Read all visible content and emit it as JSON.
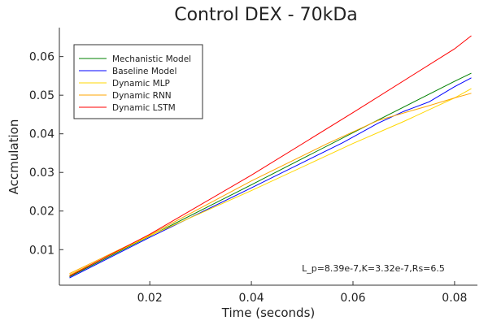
{
  "chart_data": {
    "type": "line",
    "title": "Control DEX - 70kDa",
    "xlabel": "Time (seconds)",
    "ylabel": "Accmulation",
    "xlim": [
      0.0022,
      0.0845
    ],
    "ylim": [
      0.0008,
      0.0675
    ],
    "xticks": [
      0.02,
      0.04,
      0.06,
      0.08
    ],
    "xtick_labels": [
      "0.02",
      "0.04",
      "0.06",
      "0.08"
    ],
    "yticks": [
      0.01,
      0.02,
      0.03,
      0.04,
      0.05,
      0.06
    ],
    "ytick_labels": [
      "0.01",
      "0.02",
      "0.03",
      "0.04",
      "0.05",
      "0.06"
    ],
    "grid": false,
    "legend_position": "top-left",
    "annotation": "L_p=8.39e-7,K=3.32e-7,Rs=6.5",
    "series": [
      {
        "name": "Mechanistic Model",
        "color": "#008000",
        "x": [
          0.0042,
          0.02,
          0.04,
          0.06,
          0.08,
          0.0833
        ],
        "y": [
          0.003,
          0.0135,
          0.0268,
          0.0403,
          0.0536,
          0.0557
        ]
      },
      {
        "name": "Baseline Model",
        "color": "#0000ff",
        "x": [
          0.0042,
          0.02,
          0.03,
          0.04,
          0.05,
          0.058,
          0.065,
          0.07,
          0.075,
          0.08,
          0.0833
        ],
        "y": [
          0.0027,
          0.0132,
          0.0196,
          0.026,
          0.0325,
          0.0377,
          0.0428,
          0.0458,
          0.0483,
          0.0522,
          0.0545
        ]
      },
      {
        "name": "Dynamic MLP",
        "color": "#ffd700",
        "x": [
          0.0042,
          0.02,
          0.04,
          0.06,
          0.07,
          0.08,
          0.0833
        ],
        "y": [
          0.0035,
          0.0136,
          0.0253,
          0.0375,
          0.0432,
          0.0493,
          0.0517
        ]
      },
      {
        "name": "Dynamic RNN",
        "color": "#ffa500",
        "x": [
          0.0042,
          0.02,
          0.04,
          0.055,
          0.065,
          0.075,
          0.08,
          0.0833
        ],
        "y": [
          0.0038,
          0.0138,
          0.0278,
          0.0375,
          0.0435,
          0.0473,
          0.0493,
          0.0505
        ]
      },
      {
        "name": "Dynamic LSTM",
        "color": "#ff0000",
        "x": [
          0.0042,
          0.02,
          0.04,
          0.06,
          0.08,
          0.0833
        ],
        "y": [
          0.0032,
          0.014,
          0.0293,
          0.0455,
          0.062,
          0.0654
        ]
      }
    ]
  }
}
